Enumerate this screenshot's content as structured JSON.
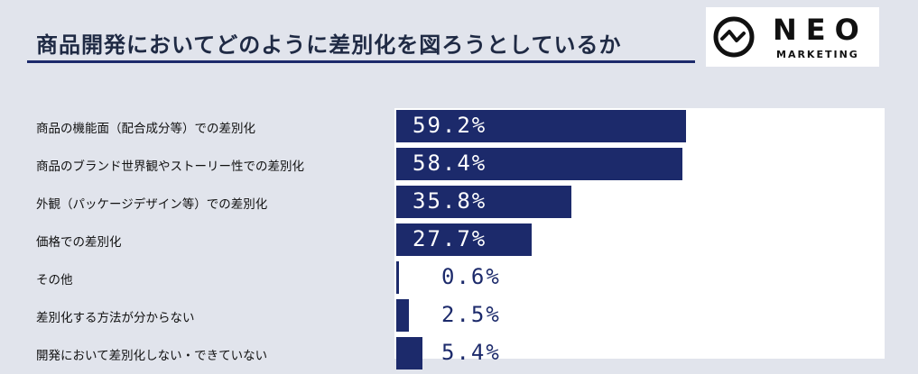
{
  "title": "商品開発においてどのように差別化を図ろうとしているか",
  "logo": {
    "word": "NEO",
    "sub": "MARKETING"
  },
  "colors": {
    "bar": "#1c2a6b",
    "title_rule": "#1c2a6b",
    "background": "#e1e4ec"
  },
  "chart_data": {
    "type": "bar",
    "orientation": "horizontal",
    "title": "商品開発においてどのように差別化を図ろうとしているか",
    "categories": [
      "商品の機能面（配合成分等）での差別化",
      "商品のブランド世界観やストーリー性での差別化",
      "外観（パッケージデザイン等）での差別化",
      "価格での差別化",
      "その他",
      "差別化する方法が分からない",
      "開発において差別化しない・できていない"
    ],
    "values": [
      59.2,
      58.4,
      35.8,
      27.7,
      0.6,
      2.5,
      5.4
    ],
    "value_labels": [
      "59.2%",
      "58.4%",
      "35.8%",
      "27.7%",
      "0.6%",
      "2.5%",
      "5.4%"
    ],
    "unit": "%",
    "xlim": [
      0,
      100
    ],
    "grid": false,
    "legend": "none"
  }
}
